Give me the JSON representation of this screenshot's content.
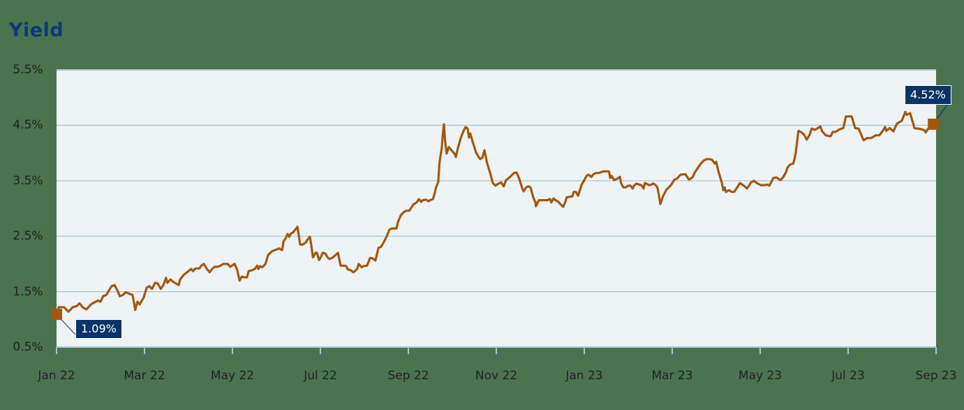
{
  "title": "Yield",
  "y_axis": {
    "ticks": [
      {
        "label": "5.5%",
        "value": 5.5
      },
      {
        "label": "4.5%",
        "value": 4.5
      },
      {
        "label": "3.5%",
        "value": 3.5
      },
      {
        "label": "2.5%",
        "value": 2.5
      },
      {
        "label": "1.5%",
        "value": 1.5
      },
      {
        "label": "0.5%",
        "value": 0.5
      }
    ]
  },
  "x_axis": {
    "ticks": [
      {
        "label": "Jan 22",
        "month": 0
      },
      {
        "label": "Mar 22",
        "month": 2
      },
      {
        "label": "May 22",
        "month": 4
      },
      {
        "label": "Jul 22",
        "month": 6
      },
      {
        "label": "Sep 22",
        "month": 8
      },
      {
        "label": "Nov 22",
        "month": 10
      },
      {
        "label": "Jan 23",
        "month": 12
      },
      {
        "label": "Mar 23",
        "month": 14
      },
      {
        "label": "May 23",
        "month": 16
      },
      {
        "label": "Jul 23",
        "month": 18
      },
      {
        "label": "Sep 23",
        "month": 20
      }
    ]
  },
  "annotations": {
    "start": {
      "label": "1.09%",
      "value": 1.09,
      "month": 0
    },
    "end": {
      "label": "4.52%",
      "value": 4.52,
      "month": 19.94
    }
  },
  "colors": {
    "background": "#4a7350",
    "plot_bg": "#eef3f6",
    "grid": "#a9c4d2",
    "line": "#a2580f",
    "callout_bg": "#0a3468",
    "title": "#0b3a7a"
  },
  "chart_data": {
    "type": "line",
    "title": "Yield",
    "xlabel": "",
    "ylabel": "",
    "ylim": [
      0.5,
      5.5
    ],
    "xlim": [
      "Jan 22",
      "Sep 23"
    ],
    "x_unit": "months since Jan 2022",
    "grid": true,
    "legend": null,
    "annotations": [
      {
        "text": "1.09%",
        "x": "Jan 22",
        "y": 1.09
      },
      {
        "text": "4.52%",
        "x": "Sep 23",
        "y": 4.52
      }
    ],
    "series": [
      {
        "name": "Yield",
        "x": [
          0.0,
          0.05,
          0.17,
          0.27,
          0.37,
          0.46,
          0.52,
          0.59,
          0.68,
          0.78,
          0.87,
          0.94,
          1.0,
          1.06,
          1.13,
          1.19,
          1.25,
          1.32,
          1.38,
          1.44,
          1.51,
          1.57,
          1.63,
          1.73,
          1.79,
          1.84,
          1.89,
          1.98,
          2.05,
          2.11,
          2.17,
          2.24,
          2.3,
          2.37,
          2.43,
          2.49,
          2.52,
          2.59,
          2.65,
          2.71,
          2.78,
          2.81,
          2.9,
          3.0,
          3.06,
          3.1,
          3.16,
          3.25,
          3.29,
          3.35,
          3.41,
          3.48,
          3.54,
          3.6,
          3.67,
          3.73,
          3.79,
          3.89,
          3.95,
          4.05,
          4.11,
          4.16,
          4.21,
          4.27,
          4.33,
          4.37,
          4.46,
          4.52,
          4.56,
          4.59,
          4.62,
          4.68,
          4.75,
          4.81,
          4.9,
          5.0,
          5.06,
          5.13,
          5.16,
          5.22,
          5.25,
          5.29,
          5.32,
          5.38,
          5.48,
          5.54,
          5.6,
          5.67,
          5.7,
          5.76,
          5.79,
          5.83,
          5.89,
          5.92,
          5.97,
          6.02,
          6.05,
          6.11,
          6.17,
          6.21,
          6.27,
          6.33,
          6.4,
          6.46,
          6.52,
          6.59,
          6.62,
          6.68,
          6.75,
          6.81,
          6.84,
          6.87,
          6.94,
          6.97,
          7.06,
          7.13,
          7.19,
          7.25,
          7.32,
          7.38,
          7.44,
          7.51,
          7.57,
          7.63,
          7.73,
          7.76,
          7.83,
          7.89,
          7.95,
          8.02,
          8.08,
          8.11,
          8.19,
          8.24,
          8.29,
          8.33,
          8.4,
          8.46,
          8.49,
          8.56,
          8.59,
          8.63,
          8.68,
          8.71,
          8.76,
          8.78,
          8.81,
          8.84,
          8.87,
          8.92,
          8.98,
          9.05,
          9.08,
          9.13,
          9.19,
          9.25,
          9.3,
          9.35,
          9.38,
          9.41,
          9.48,
          9.54,
          9.59,
          9.63,
          9.68,
          9.73,
          9.79,
          9.86,
          9.92,
          9.98,
          10.05,
          10.11,
          10.17,
          10.22,
          10.3,
          10.4,
          10.46,
          10.52,
          10.59,
          10.62,
          10.68,
          10.73,
          10.78,
          10.84,
          10.89,
          10.9,
          10.97,
          11.06,
          11.16,
          11.22,
          11.25,
          11.3,
          11.35,
          11.41,
          11.48,
          11.52,
          11.57,
          11.6,
          11.67,
          11.73,
          11.76,
          11.81,
          11.86,
          11.94,
          12.0,
          12.05,
          12.1,
          12.16,
          12.21,
          12.27,
          12.33,
          12.4,
          12.46,
          12.56,
          12.59,
          12.62,
          12.68,
          12.78,
          12.81,
          12.84,
          12.89,
          12.94,
          13.0,
          13.05,
          13.1,
          13.13,
          13.19,
          13.25,
          13.3,
          13.35,
          13.38,
          13.41,
          13.48,
          13.52,
          13.57,
          13.63,
          13.67,
          13.73,
          13.79,
          13.86,
          13.92,
          13.98,
          14.05,
          14.11,
          14.19,
          14.3,
          14.38,
          14.46,
          14.52,
          14.59,
          14.65,
          14.71,
          14.78,
          14.84,
          14.9,
          14.97,
          15.0,
          15.06,
          15.13,
          15.16,
          15.19,
          15.22,
          15.29,
          15.35,
          15.41,
          15.48,
          15.54,
          15.63,
          15.7,
          15.76,
          15.79,
          15.86,
          15.92,
          16.02,
          16.08,
          16.17,
          16.21,
          16.3,
          16.37,
          16.46,
          16.52,
          16.59,
          16.62,
          16.68,
          16.75,
          16.78,
          16.81,
          16.87,
          16.94,
          17.0,
          17.06,
          17.13,
          17.17,
          17.25,
          17.37,
          17.41,
          17.49,
          17.6,
          17.65,
          17.71,
          17.81,
          17.89,
          17.95,
          18.08,
          18.16,
          18.24,
          18.35,
          18.43,
          18.52,
          18.63,
          18.71,
          18.79,
          18.84,
          18.87,
          18.95,
          19.03,
          19.11,
          19.22,
          19.3,
          19.33,
          19.41,
          19.51,
          19.67,
          19.75,
          19.76,
          19.83,
          19.94
        ],
        "values": [
          1.09,
          1.22,
          1.22,
          1.14,
          1.22,
          1.24,
          1.29,
          1.22,
          1.18,
          1.27,
          1.31,
          1.34,
          1.32,
          1.42,
          1.44,
          1.52,
          1.6,
          1.62,
          1.53,
          1.42,
          1.44,
          1.49,
          1.47,
          1.44,
          1.17,
          1.32,
          1.27,
          1.39,
          1.57,
          1.6,
          1.55,
          1.66,
          1.65,
          1.55,
          1.62,
          1.75,
          1.66,
          1.72,
          1.68,
          1.65,
          1.62,
          1.72,
          1.81,
          1.87,
          1.91,
          1.87,
          1.92,
          1.92,
          1.97,
          2.0,
          1.92,
          1.85,
          1.91,
          1.95,
          1.95,
          1.97,
          2.0,
          2.0,
          1.95,
          2.0,
          1.89,
          1.7,
          1.77,
          1.76,
          1.76,
          1.87,
          1.89,
          1.92,
          1.97,
          1.91,
          1.96,
          1.94,
          2.0,
          2.16,
          2.23,
          2.26,
          2.28,
          2.25,
          2.4,
          2.48,
          2.54,
          2.49,
          2.54,
          2.57,
          2.67,
          2.35,
          2.35,
          2.39,
          2.43,
          2.49,
          2.35,
          2.12,
          2.2,
          2.2,
          2.07,
          2.14,
          2.2,
          2.19,
          2.11,
          2.09,
          2.11,
          2.15,
          2.2,
          1.97,
          1.97,
          1.96,
          1.9,
          1.89,
          1.85,
          1.89,
          1.92,
          2.0,
          1.94,
          1.96,
          1.97,
          2.11,
          2.1,
          2.06,
          2.29,
          2.31,
          2.39,
          2.5,
          2.62,
          2.64,
          2.64,
          2.75,
          2.88,
          2.93,
          2.96,
          2.96,
          3.03,
          3.07,
          3.11,
          3.17,
          3.12,
          3.15,
          3.16,
          3.13,
          3.15,
          3.17,
          3.25,
          3.38,
          3.48,
          3.84,
          4.09,
          4.3,
          4.52,
          4.19,
          3.99,
          4.11,
          4.05,
          3.99,
          3.93,
          4.1,
          4.27,
          4.39,
          4.47,
          4.44,
          4.28,
          4.35,
          4.16,
          4.01,
          3.94,
          3.89,
          3.91,
          4.05,
          3.82,
          3.64,
          3.46,
          3.41,
          3.45,
          3.47,
          3.4,
          3.51,
          3.56,
          3.64,
          3.65,
          3.54,
          3.36,
          3.31,
          3.38,
          3.4,
          3.38,
          3.2,
          3.11,
          3.04,
          3.15,
          3.15,
          3.15,
          3.17,
          3.11,
          3.18,
          3.15,
          3.12,
          3.06,
          3.03,
          3.12,
          3.2,
          3.21,
          3.22,
          3.3,
          3.3,
          3.23,
          3.43,
          3.51,
          3.59,
          3.61,
          3.57,
          3.62,
          3.64,
          3.64,
          3.66,
          3.67,
          3.67,
          3.55,
          3.59,
          3.51,
          3.55,
          3.57,
          3.45,
          3.38,
          3.38,
          3.41,
          3.41,
          3.36,
          3.41,
          3.45,
          3.43,
          3.42,
          3.36,
          3.46,
          3.45,
          3.42,
          3.43,
          3.45,
          3.42,
          3.36,
          3.08,
          3.22,
          3.33,
          3.38,
          3.43,
          3.52,
          3.54,
          3.61,
          3.62,
          3.52,
          3.56,
          3.66,
          3.74,
          3.81,
          3.86,
          3.89,
          3.89,
          3.88,
          3.81,
          3.84,
          3.64,
          3.46,
          3.33,
          3.38,
          3.3,
          3.33,
          3.3,
          3.3,
          3.38,
          3.46,
          3.41,
          3.36,
          3.43,
          3.47,
          3.5,
          3.46,
          3.42,
          3.42,
          3.43,
          3.41,
          3.55,
          3.56,
          3.51,
          3.56,
          3.66,
          3.74,
          3.79,
          3.81,
          3.89,
          4.01,
          4.4,
          4.37,
          4.33,
          4.24,
          4.34,
          4.44,
          4.42,
          4.48,
          4.39,
          4.32,
          4.3,
          4.38,
          4.38,
          4.43,
          4.45,
          4.66,
          4.66,
          4.45,
          4.44,
          4.23,
          4.27,
          4.27,
          4.32,
          4.32,
          4.4,
          4.47,
          4.4,
          4.45,
          4.39,
          4.53,
          4.58,
          4.74,
          4.69,
          4.72,
          4.45,
          4.43,
          4.4,
          4.37,
          4.45,
          4.52
        ]
      }
    ]
  }
}
